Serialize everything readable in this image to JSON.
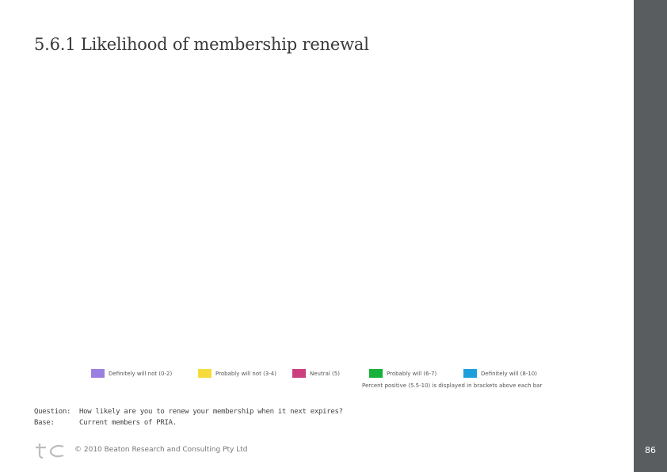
{
  "title": "5.6.1 Likelihood of membership renewal",
  "chart_data": {
    "type": "bar",
    "title": "5.6.1 Likelihood of membership renewal",
    "series": [
      {
        "name": "Definitely will not (0-2)",
        "color": "#9b7fe0",
        "values": []
      },
      {
        "name": "Probably will not (3-4)",
        "color": "#f5dc3c",
        "values": []
      },
      {
        "name": "Neutral (5)",
        "color": "#cc3f7e",
        "values": []
      },
      {
        "name": "Probably will (6-7)",
        "color": "#16b23a",
        "values": []
      },
      {
        "name": "Definitely will (8-10)",
        "color": "#1e9fdc",
        "values": []
      }
    ],
    "note": "Percent positive (5.5-10) is displayed in brackets above each bar"
  },
  "legend": {
    "items": [
      {
        "label": "Definitely will not (0-2)",
        "color": "#9b7fe0"
      },
      {
        "label": "Probably will not (3-4)",
        "color": "#f5dc3c"
      },
      {
        "label": "Neutral (5)",
        "color": "#cc3f7e"
      },
      {
        "label": "Probably will (6-7)",
        "color": "#16b23a"
      },
      {
        "label": "Definitely will (8-10)",
        "color": "#1e9fdc"
      }
    ],
    "note": "Percent positive (5.5-10) is displayed in brackets above each bar"
  },
  "meta": {
    "question_label": "Question:",
    "question_text": "How likely are you to renew your membership when it next expires?",
    "base_label": "Base:",
    "base_text": "Current members of PRIA."
  },
  "footer": {
    "copyright": "© 2010 Beaton Research and Consulting Pty Ltd",
    "page_number": "86"
  }
}
